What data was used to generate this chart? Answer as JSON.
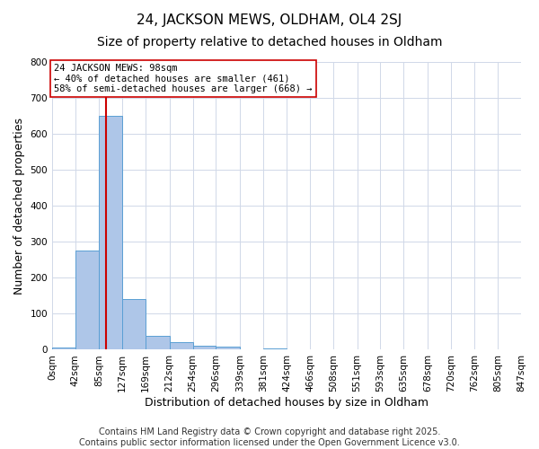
{
  "title": "24, JACKSON MEWS, OLDHAM, OL4 2SJ",
  "subtitle": "Size of property relative to detached houses in Oldham",
  "xlabel": "Distribution of detached houses by size in Oldham",
  "ylabel": "Number of detached properties",
  "bin_edges": [
    0,
    42,
    85,
    127,
    169,
    212,
    254,
    296,
    339,
    381,
    424,
    466,
    508,
    551,
    593,
    635,
    678,
    720,
    762,
    805,
    847
  ],
  "bin_counts": [
    5,
    275,
    650,
    140,
    38,
    20,
    10,
    8,
    0,
    3,
    0,
    0,
    0,
    0,
    0,
    0,
    0,
    0,
    0,
    2
  ],
  "bar_color": "#aec6e8",
  "bar_edge_color": "#5a9fd4",
  "vline_x": 98,
  "vline_color": "#cc0000",
  "annotation_text": "24 JACKSON MEWS: 98sqm\n← 40% of detached houses are smaller (461)\n58% of semi-detached houses are larger (668) →",
  "annotation_box_color": "#ffffff",
  "annotation_box_edge_color": "#cc0000",
  "ylim": [
    0,
    800
  ],
  "yticks": [
    0,
    100,
    200,
    300,
    400,
    500,
    600,
    700,
    800
  ],
  "tick_labels": [
    "0sqm",
    "42sqm",
    "85sqm",
    "127sqm",
    "169sqm",
    "212sqm",
    "254sqm",
    "296sqm",
    "339sqm",
    "381sqm",
    "424sqm",
    "466sqm",
    "508sqm",
    "551sqm",
    "593sqm",
    "635sqm",
    "678sqm",
    "720sqm",
    "762sqm",
    "805sqm",
    "847sqm"
  ],
  "footer_line1": "Contains HM Land Registry data © Crown copyright and database right 2025.",
  "footer_line2": "Contains public sector information licensed under the Open Government Licence v3.0.",
  "background_color": "#ffffff",
  "grid_color": "#d0d8e8",
  "title_fontsize": 11,
  "subtitle_fontsize": 10,
  "axis_label_fontsize": 9,
  "tick_fontsize": 7.5,
  "footer_fontsize": 7,
  "annotation_fontsize": 7.5
}
